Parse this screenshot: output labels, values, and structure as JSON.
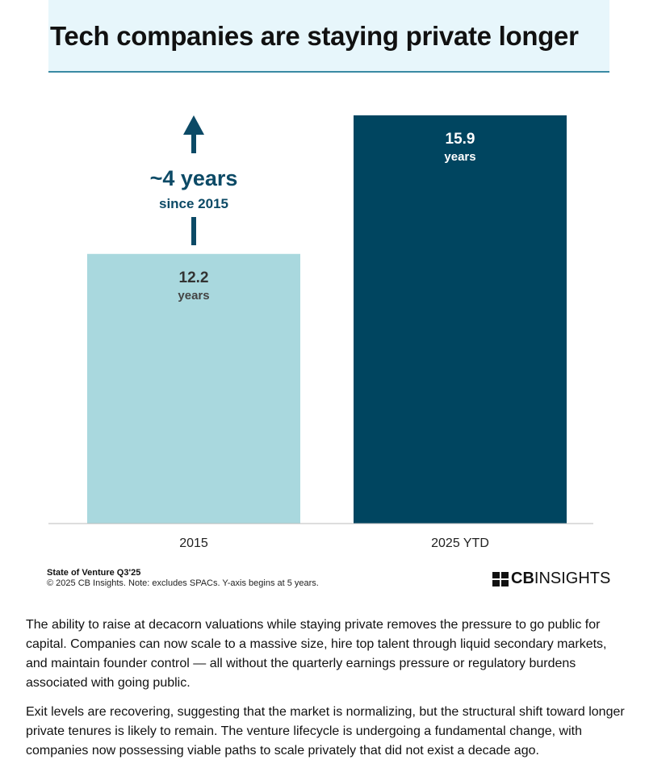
{
  "header": {
    "title": "Tech companies are staying private longer"
  },
  "chart_data": {
    "type": "bar",
    "title": "Tech companies are staying private longer",
    "categories": [
      "2015",
      "2025 YTD"
    ],
    "values": [
      12.2,
      15.9
    ],
    "value_labels": [
      "12.2",
      "15.9"
    ],
    "unit_label": "years",
    "ylim": [
      5,
      15.9
    ],
    "grid": false,
    "colors": [
      "#a9d8de",
      "#004560"
    ],
    "annotation": {
      "main": "~4 years",
      "sub": "since 2015",
      "color": "#0c4a66"
    }
  },
  "footer": {
    "source": "State of Venture Q3'25",
    "note": "© 2025 CB Insights. Note: excludes SPACs. Y-axis begins at 5 years.",
    "logo": "CBINSIGHTS"
  },
  "body": {
    "paragraphs": [
      "The ability to raise at decacorn valuations while staying private removes the pressure to go public for capital. Companies can now scale to a massive size, hire top talent through liquid secondary markets, and maintain founder control — all without the quarterly earnings pressure or regulatory burdens associated with going public.",
      "Exit levels are recovering, suggesting that the market is normalizing, but the structural shift toward longer private tenures is likely to remain. The venture lifecycle is undergoing a fundamental change, with companies now possessing viable paths to scale privately that did not exist a decade ago."
    ]
  }
}
